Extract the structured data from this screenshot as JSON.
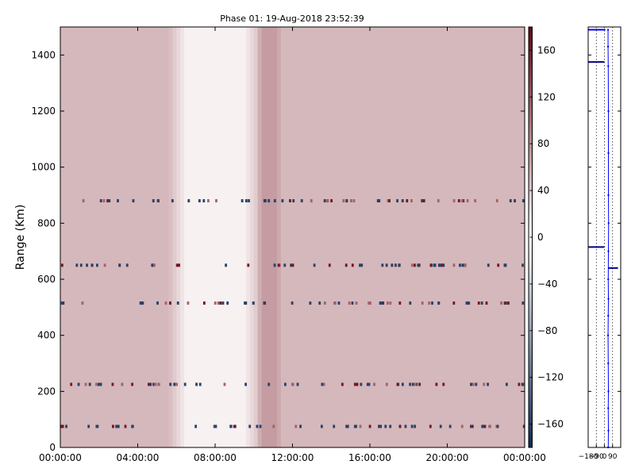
{
  "chart_data": [
    {
      "type": "heatmap",
      "title": "Phase 01: 19-Aug-2018 23:52:39",
      "ylabel": "Range (Km)",
      "xlabel": "",
      "x_tick_labels": [
        "00:00:00",
        "04:00:00",
        "08:00:00",
        "12:00:00",
        "16:00:00",
        "20:00:00",
        "00:00:00"
      ],
      "x_range_hours": [
        0,
        24
      ],
      "y_ticks": [
        0,
        200,
        400,
        600,
        800,
        1000,
        1200,
        1400
      ],
      "ylim": [
        0,
        1500
      ],
      "colorbar": {
        "ticks": [
          160,
          120,
          80,
          40,
          0,
          -40,
          -80,
          -120,
          -160
        ],
        "vmin": -180,
        "vmax": 180,
        "colors": {
          "low": "#0b2a55",
          "mid": "#ffffff",
          "high": "#67000d"
        }
      },
      "field": {
        "base_value": 50,
        "bands": [
          {
            "from_hours": 6.5,
            "to_hours": 9.5,
            "value": 10
          },
          {
            "from_hours": 10.4,
            "to_hours": 11.2,
            "value": 70
          }
        ]
      },
      "speckle_ranges_km": [
        75,
        225,
        515,
        650,
        880
      ],
      "grid": false
    },
    {
      "type": "line",
      "x_tick_labels": [
        "-180",
        "-90",
        "0",
        "90"
      ],
      "xlim": [
        -180,
        180
      ],
      "ylim": [
        0,
        1500
      ],
      "vertical_grid_x": [
        -90,
        0,
        90
      ],
      "series": [
        {
          "x": [
            40,
            40,
            42,
            44,
            44,
            44,
            46,
            44,
            42,
            44,
            42,
            40,
            42,
            44,
            42,
            44,
            42
          ],
          "y": [
            1490,
            1430,
            1360,
            1200,
            1050,
            900,
            800,
            700,
            600,
            530,
            470,
            400,
            300,
            200,
            140,
            60,
            0
          ],
          "color": "#0000ff"
        }
      ],
      "spikes": [
        {
          "y": 1490,
          "x_from": -180,
          "x_to": 10,
          "color": "#0000ff"
        },
        {
          "y": 1375,
          "x_from": -180,
          "x_to": 0,
          "color": "#00008b"
        },
        {
          "y": 715,
          "x_from": -180,
          "x_to": 0,
          "color": "#00008b"
        },
        {
          "y": 640,
          "x_from": 44,
          "x_to": 150,
          "color": "#00008b"
        }
      ]
    }
  ]
}
